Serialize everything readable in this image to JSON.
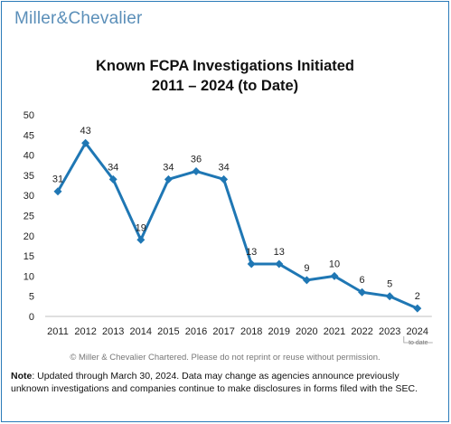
{
  "brand": {
    "name_left": "Miller",
    "amp": "&",
    "name_right": "Chevalier",
    "color": "#5b8fb9"
  },
  "colors": {
    "line": "#1f77b4",
    "frame": "#2a7ab8"
  },
  "chart_data": {
    "type": "line",
    "title": "Known FCPA Investigations Initiated",
    "subtitle": "2011 – 2024 (to Date)",
    "categories": [
      "2011",
      "2012",
      "2013",
      "2014",
      "2015",
      "2016",
      "2017",
      "2018",
      "2019",
      "2020",
      "2021",
      "2022",
      "2023",
      "2024"
    ],
    "series": [
      {
        "values": [
          31,
          43,
          34,
          19,
          34,
          36,
          34,
          13,
          13,
          9,
          10,
          6,
          5,
          2
        ]
      }
    ],
    "data_labels": [
      "31",
      "43",
      "34",
      "19",
      "34",
      "36",
      "34",
      "13",
      "13",
      "9",
      "10",
      "6",
      "5",
      "2"
    ],
    "yticks": [
      "0",
      "5",
      "10",
      "15",
      "20",
      "25",
      "30",
      "35",
      "40",
      "45",
      "50"
    ],
    "ylim": [
      0,
      50
    ],
    "x_annotation": "to date",
    "grid": false,
    "marker": "diamond"
  },
  "footer": {
    "copyright": "© Miller & Chevalier Chartered. Please do not reprint or reuse without permission.",
    "note_label": "Note",
    "note_text": ": Updated through March 30, 2024. Data may change as agencies announce previously unknown investigations and companies continue to make disclosures in forms filed with the SEC."
  }
}
